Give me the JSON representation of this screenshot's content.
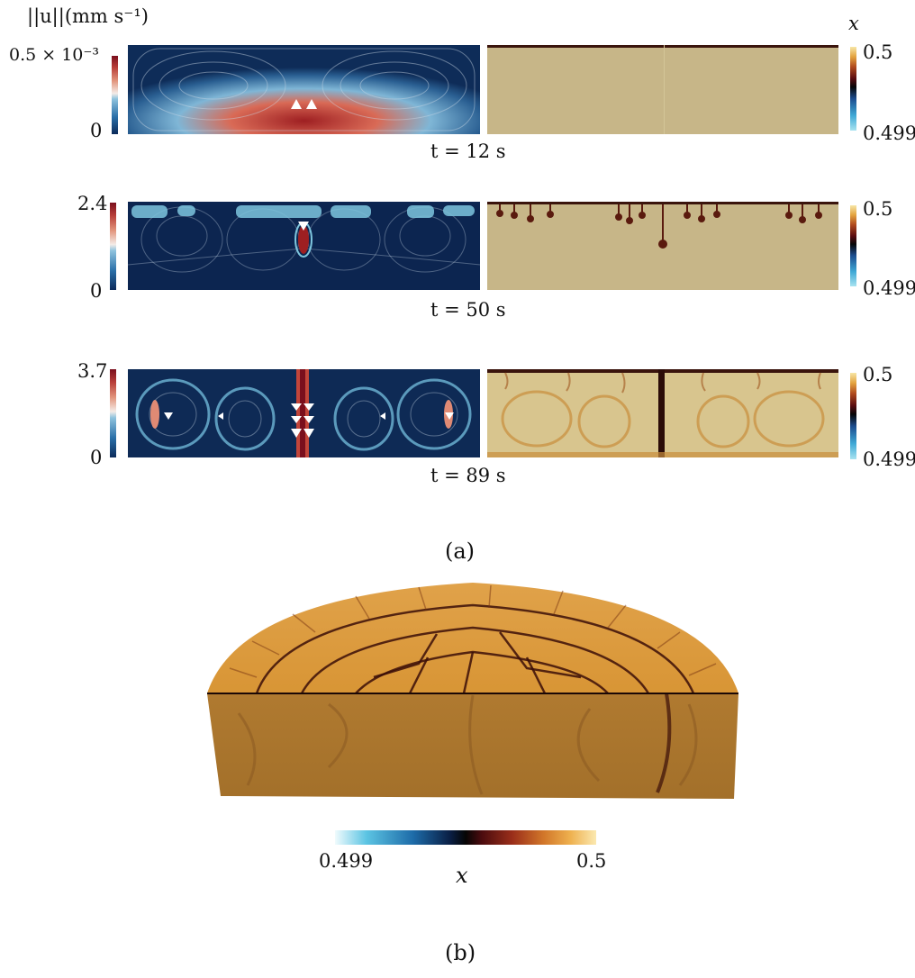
{
  "colors": {
    "velocity_dark": "#0b2a5a",
    "velocity_hot": "#8a1c24",
    "concentration_fill": "#c7b688",
    "concentration_3d": "#d39a45",
    "finger": "#4a0e0a"
  },
  "panel_a": {
    "velocity_label": "||u||(mm s⁻¹)",
    "x_label": "x",
    "caption": "(a)",
    "rows": [
      {
        "time": "t = 12 s",
        "vmax": "0.5 × 10⁻³",
        "vmin": "0",
        "xmax": "0.5",
        "xmin": "0.499"
      },
      {
        "time": "t = 50 s",
        "vmax": "2.4",
        "vmin": "0",
        "xmax": "0.5",
        "xmin": "0.499"
      },
      {
        "time": "t = 89 s",
        "vmax": "3.7",
        "vmin": "0",
        "xmax": "0.5",
        "xmin": "0.499"
      }
    ]
  },
  "panel_b": {
    "x_min": "0.499",
    "x_max": "0.5",
    "x_label": "x",
    "caption": "(b)"
  }
}
